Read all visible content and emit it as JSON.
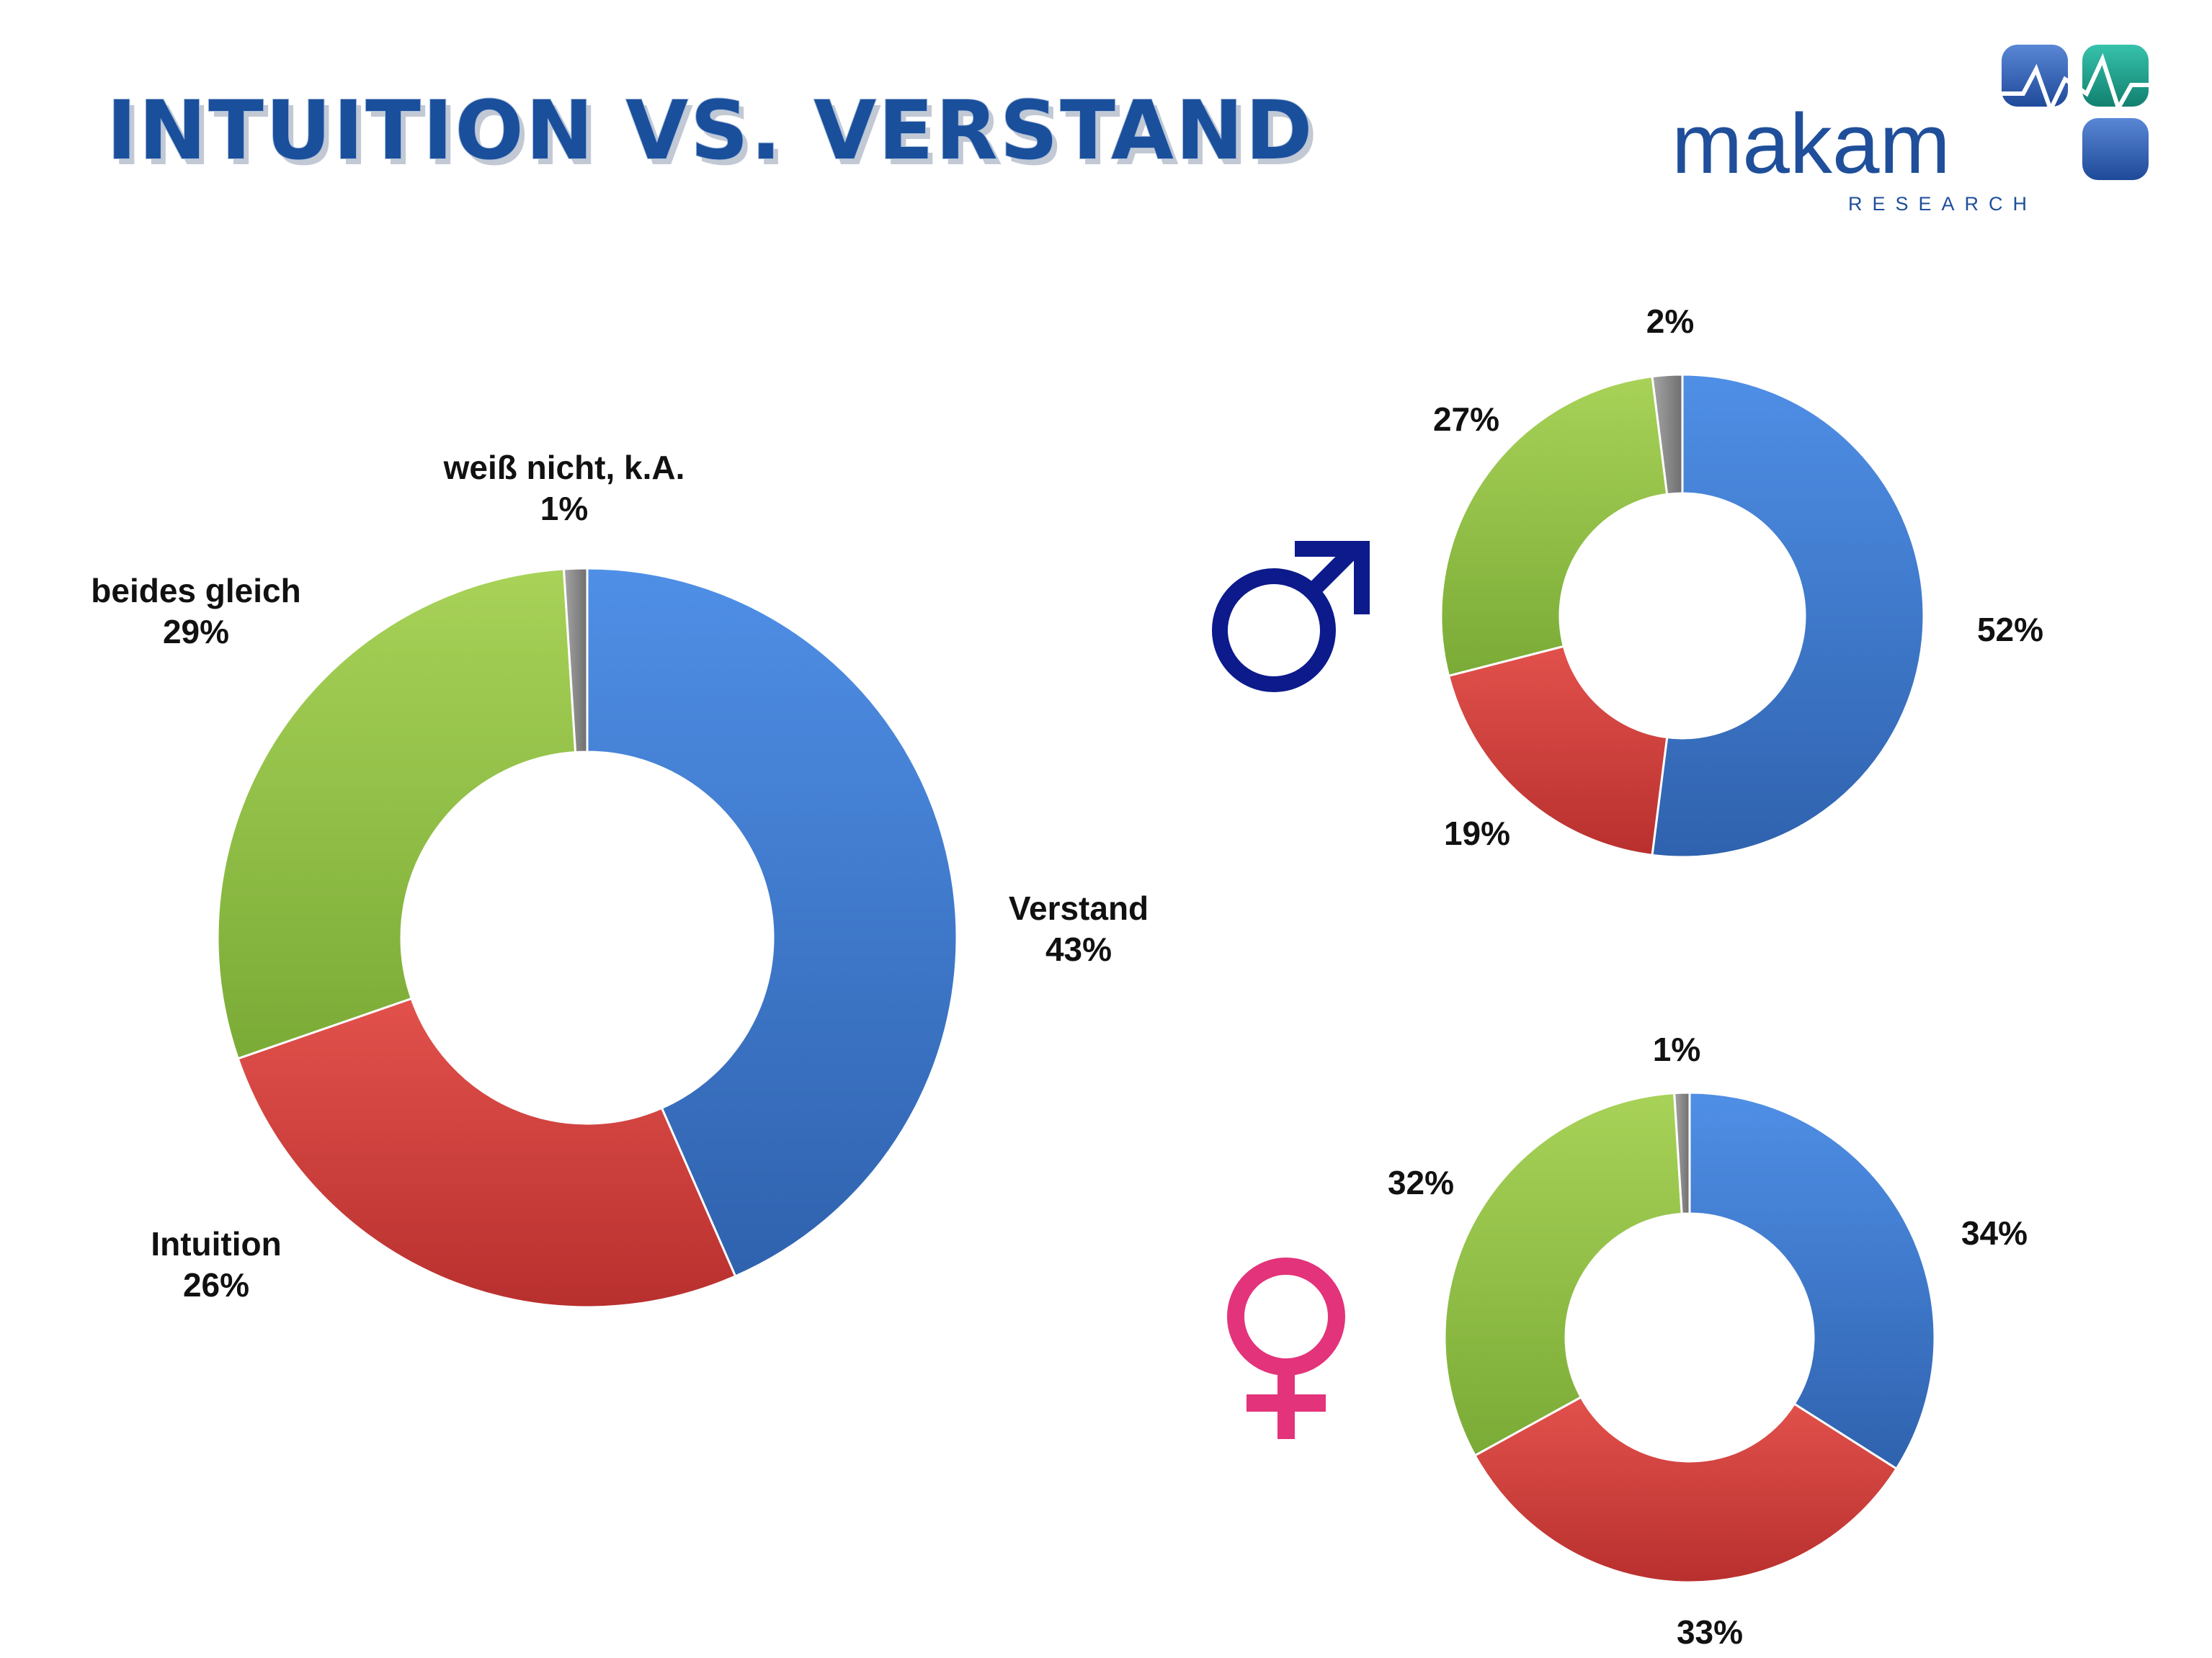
{
  "header": {
    "title": "INTUITION VS. VERSTAND"
  },
  "logo": {
    "word": "makam",
    "sub": "RESEARCH",
    "colors": {
      "navy": "#1f4f9a",
      "teal": "#1a9c8c",
      "tile_blue": "#2a5cb0"
    }
  },
  "gender_icons": {
    "male": {
      "icon": "male-symbol-icon",
      "color": "#0c1a8c"
    },
    "female": {
      "icon": "female-symbol-icon",
      "color": "#e3337a"
    }
  },
  "colors": {
    "Verstand": "#3a74cc",
    "Intuition": "#d03f3c",
    "beides gleich": "#8fc144",
    "weiß nicht, k.A.": "#8a8a8a"
  },
  "chart_data": [
    {
      "type": "pie",
      "variant": "donut",
      "id": "total",
      "categories": [
        "Verstand",
        "Intuition",
        "beides gleich",
        "weiß nicht, k.A."
      ],
      "values": [
        43,
        26,
        29,
        1
      ],
      "labels": [
        {
          "name": "Verstand",
          "value": "43%"
        },
        {
          "name": "Intuition",
          "value": "26%"
        },
        {
          "name": "beides gleich",
          "value": "29%"
        },
        {
          "name": "weiß nicht, k.A.",
          "value": "1%"
        }
      ]
    },
    {
      "type": "pie",
      "variant": "donut",
      "id": "male",
      "categories": [
        "Verstand",
        "Intuition",
        "beides gleich",
        "weiß nicht, k.A."
      ],
      "values": [
        52,
        19,
        27,
        2
      ],
      "labels": [
        {
          "name": "",
          "value": "52%"
        },
        {
          "name": "",
          "value": "19%"
        },
        {
          "name": "",
          "value": "27%"
        },
        {
          "name": "",
          "value": "2%"
        }
      ]
    },
    {
      "type": "pie",
      "variant": "donut",
      "id": "female",
      "categories": [
        "Verstand",
        "Intuition",
        "beides gleich",
        "weiß nicht, k.A."
      ],
      "values": [
        34,
        33,
        32,
        1
      ],
      "labels": [
        {
          "name": "",
          "value": "34%"
        },
        {
          "name": "",
          "value": "33%"
        },
        {
          "name": "",
          "value": "32%"
        },
        {
          "name": "",
          "value": "1%"
        }
      ]
    }
  ]
}
